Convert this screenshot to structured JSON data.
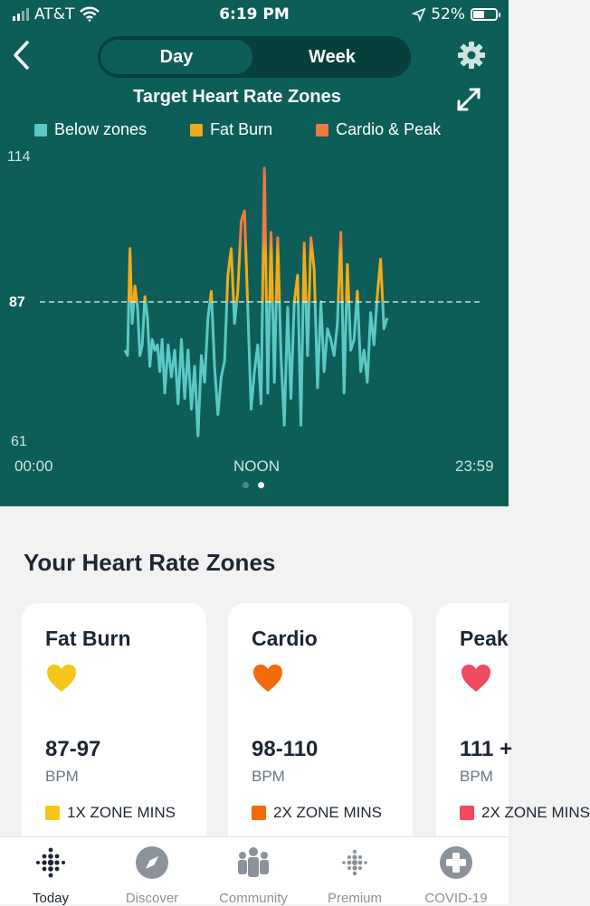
{
  "status_bar": {
    "carrier": "AT&T",
    "time": "6:19 PM",
    "battery": "52%",
    "battery_level": 0.52
  },
  "segmented": {
    "options": [
      "Day",
      "Week"
    ],
    "selected": "Day"
  },
  "header": {
    "title": "Target Heart Rate Zones"
  },
  "colors": {
    "below": "#5bc8c3",
    "fat_burn": "#f2aa1a",
    "cardio_peak": "#f27a3f",
    "peak_tip": "#e8506a",
    "background": "#0d5e59"
  },
  "chart_data": {
    "type": "line",
    "title": "Target Heart Rate Zones",
    "legend": [
      "Below zones",
      "Fat Burn",
      "Cardio & Peak"
    ],
    "legend_position": "top",
    "x_labels": [
      "00:00",
      "NOON",
      "23:59"
    ],
    "y_ticks": [
      61,
      87,
      114
    ],
    "ylim": [
      61,
      114
    ],
    "threshold": 87,
    "series": [
      {
        "x": [
          "05:00",
          "05:08",
          "05:15",
          "05:22",
          "05:30",
          "05:38",
          "05:45",
          "05:52",
          "06:00",
          "06:08",
          "06:15",
          "06:22",
          "06:30",
          "06:38",
          "06:45",
          "06:52",
          "07:00",
          "07:10",
          "07:20",
          "07:30",
          "07:40",
          "07:50",
          "08:00",
          "08:10",
          "08:20",
          "08:30",
          "08:40",
          "08:50",
          "09:00",
          "09:10",
          "09:20",
          "09:30",
          "09:40",
          "09:50",
          "10:00",
          "10:10",
          "10:20",
          "10:30",
          "10:40",
          "10:50",
          "11:00",
          "11:10",
          "11:20",
          "11:30",
          "11:40",
          "11:50",
          "12:00",
          "12:10",
          "12:20",
          "12:30",
          "12:40",
          "12:50",
          "13:00",
          "13:10",
          "13:20",
          "13:30",
          "13:40",
          "13:50",
          "14:00",
          "14:10",
          "14:20",
          "14:30",
          "14:40",
          "14:50",
          "15:00",
          "15:10",
          "15:20",
          "15:30",
          "15:40",
          "15:50",
          "16:00",
          "16:10",
          "16:20",
          "16:30",
          "16:40",
          "16:50",
          "17:00",
          "17:10",
          "17:20",
          "17:30",
          "17:40",
          "17:50",
          "18:00",
          "18:10"
        ],
        "y": [
          78,
          77,
          97,
          83,
          90,
          86,
          77,
          79,
          88,
          84,
          75,
          80,
          78,
          79,
          74,
          80,
          70,
          79,
          73,
          78,
          68,
          80,
          69,
          78,
          67,
          75,
          62,
          77,
          72,
          84,
          89,
          75,
          66,
          73,
          76,
          92,
          97,
          83,
          89,
          102,
          104,
          86,
          67,
          74,
          79,
          68,
          112,
          70,
          100,
          72,
          99,
          77,
          64,
          86,
          69,
          87,
          92,
          64,
          98,
          77,
          99,
          93,
          71,
          87,
          74,
          82,
          80,
          77,
          83,
          100,
          70,
          94,
          78,
          80,
          89,
          74,
          78,
          72,
          85,
          79,
          88,
          95,
          82,
          84
        ]
      }
    ]
  },
  "zones_section": {
    "title": "Your Heart Rate Zones",
    "cards": [
      {
        "name": "Fat Burn",
        "range": "87-97",
        "unit": "BPM",
        "mins": "1X ZONE MINS",
        "color": "#f5c518"
      },
      {
        "name": "Cardio",
        "range": "98-110",
        "unit": "BPM",
        "mins": "2X ZONE MINS",
        "color": "#f26a0a"
      },
      {
        "name": "Peak",
        "range": "111 +",
        "unit": "BPM",
        "mins": "2X ZONE MINS",
        "color": "#ee4b5f"
      }
    ]
  },
  "nav": {
    "tabs": [
      {
        "label": "Today",
        "icon": "fitbit-dots-icon",
        "active": true
      },
      {
        "label": "Discover",
        "icon": "compass-icon"
      },
      {
        "label": "Community",
        "icon": "community-icon"
      },
      {
        "label": "Premium",
        "icon": "premium-dots-icon"
      },
      {
        "label": "COVID-19",
        "icon": "covid-plus-icon"
      }
    ]
  }
}
